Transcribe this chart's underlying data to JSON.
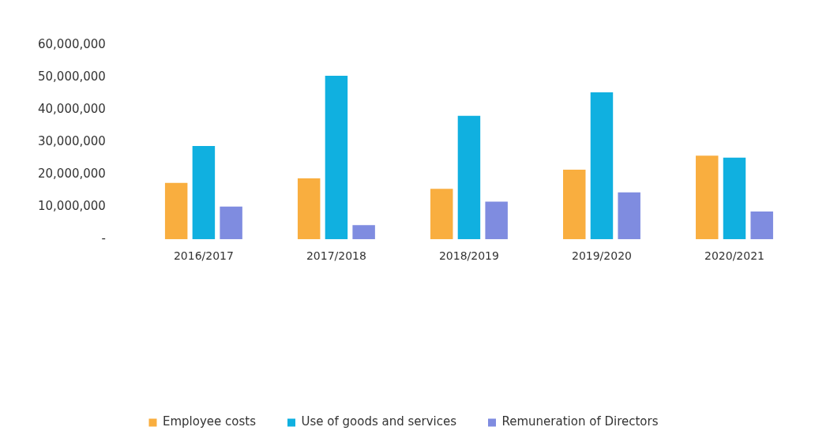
{
  "chart_data": {
    "type": "bar",
    "categories": [
      "2016/2017",
      "2017/2018",
      "2018/2019",
      "2019/2020",
      "2020/2021"
    ],
    "series": [
      {
        "name": "Employee costs",
        "color": "#f9ae3f",
        "values": [
          17400000,
          18800000,
          15600000,
          21500000,
          25800000
        ]
      },
      {
        "name": "Use of goods and services",
        "color": "#10b0e0",
        "values": [
          28800000,
          50500000,
          38100000,
          45400000,
          25200000
        ]
      },
      {
        "name": "Remuneration of Directors",
        "color": "#7f8ce0",
        "values": [
          10100000,
          4400000,
          11600000,
          14500000,
          8600000
        ]
      }
    ],
    "ylim": [
      0,
      60000000
    ],
    "yticks": [
      {
        "value": 0,
        "label": "-"
      },
      {
        "value": 10000000,
        "label": "10,000,000"
      },
      {
        "value": 20000000,
        "label": "20,000,000"
      },
      {
        "value": 30000000,
        "label": "30,000,000"
      },
      {
        "value": 40000000,
        "label": "40,000,000"
      },
      {
        "value": 50000000,
        "label": "50,000,000"
      },
      {
        "value": 60000000,
        "label": "60,000,000"
      }
    ],
    "grid": false,
    "legend": "bottom"
  }
}
